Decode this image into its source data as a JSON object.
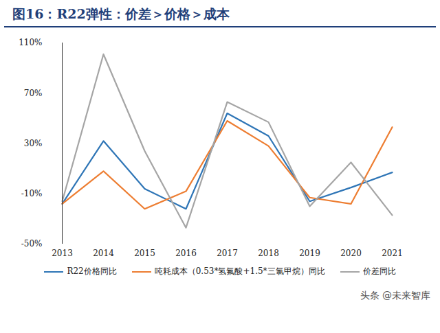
{
  "chart_data": {
    "type": "line",
    "title": "图16：R22弹性：价差＞价格＞成本",
    "categories": [
      "2013",
      "2014",
      "2015",
      "2016",
      "2017",
      "2018",
      "2019",
      "2020",
      "2021"
    ],
    "series": [
      {
        "name": "R22价格同比",
        "color": "#2e75b6",
        "values": [
          -18,
          32,
          -6,
          -22,
          54,
          36,
          -16,
          -5,
          7
        ]
      },
      {
        "name": "吨耗成本（0.53*氢氟酸+1.5*三氯甲烷）同比",
        "color": "#ed7d31",
        "values": [
          -18,
          8,
          -22,
          -8,
          48,
          28,
          -13,
          -18,
          43
        ]
      },
      {
        "name": "价差同比",
        "color": "#a5a5a5",
        "values": [
          -16,
          101,
          24,
          -37,
          63,
          47,
          -20,
          15,
          -27
        ]
      }
    ],
    "ylim": [
      -50,
      110
    ],
    "yticks": [
      {
        "value": -50,
        "label": "-50%"
      },
      {
        "value": -10,
        "label": "-10%"
      },
      {
        "value": 30,
        "label": "30%"
      },
      {
        "value": 70,
        "label": "70%"
      },
      {
        "value": 110,
        "label": "110%"
      }
    ],
    "grid": false,
    "legend": "bottom",
    "annotations": [
      "头条 @未来智库"
    ]
  }
}
